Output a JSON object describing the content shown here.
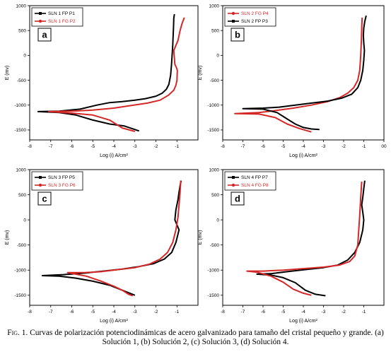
{
  "chart_data": [
    {
      "type": "line",
      "panel_label": "a",
      "xlabel": "Log (i) A/cm²",
      "ylabel": "E (mv)",
      "xlim": [
        -8,
        0
      ],
      "ylim": [
        -1700,
        1000
      ],
      "xticks": [
        -8,
        -7,
        -6,
        -5,
        -4,
        -3,
        -2,
        -1
      ],
      "yticks": [
        1000,
        500,
        0,
        -500,
        -1000,
        -1500
      ],
      "legend_position": "top-left",
      "series": [
        {
          "name": "SLN 1 FP P1",
          "color": "#000000",
          "marker": "square",
          "x": [
            -2.8,
            -3.5,
            -4.2,
            -5.0,
            -5.8,
            -6.6,
            -7.6,
            -6.6,
            -5.6,
            -4.8,
            -4.2,
            -3.6,
            -3.0,
            -2.5,
            -2.0,
            -1.7,
            -1.5,
            -1.38,
            -1.3,
            -1.26,
            -1.23,
            -1.2,
            -1.18,
            -1.16,
            -1.15,
            -1.12
          ],
          "y": [
            -1520,
            -1420,
            -1380,
            -1300,
            -1200,
            -1150,
            -1130,
            -1120,
            -1080,
            -1000,
            -950,
            -930,
            -900,
            -870,
            -820,
            -760,
            -680,
            -580,
            -400,
            -200,
            0,
            200,
            400,
            600,
            750,
            830
          ]
        },
        {
          "name": "SLN 1 FG P2",
          "color": "#d62728",
          "marker": "circle",
          "x": [
            -3.0,
            -3.6,
            -4.2,
            -5.0,
            -6.0,
            -7.1,
            -6.0,
            -5.0,
            -4.0,
            -3.2,
            -2.4,
            -1.8,
            -1.4,
            -1.15,
            -1.05,
            -1.0,
            -0.98,
            -1.02,
            -1.1,
            -1.15,
            -0.95,
            -0.85,
            -0.75,
            -0.65
          ],
          "y": [
            -1530,
            -1460,
            -1300,
            -1200,
            -1160,
            -1130,
            -1120,
            -1100,
            -1060,
            -1010,
            -960,
            -900,
            -800,
            -700,
            -600,
            -500,
            -300,
            -250,
            -180,
            100,
            300,
            500,
            650,
            760
          ]
        }
      ]
    },
    {
      "type": "line",
      "panel_label": "b",
      "xlabel": "Log (i) A/cm²",
      "ylabel": "E (mv)",
      "xlim": [
        -8,
        0
      ],
      "ylim": [
        -1700,
        1000
      ],
      "xticks": [
        -8,
        -7,
        -6,
        -5,
        -4,
        -3,
        -2,
        -1,
        0
      ],
      "xticklabels": [
        "-8",
        "-7",
        "-6",
        "-5",
        "-4",
        "-3",
        "-2",
        "-1",
        "00"
      ],
      "yticks": [
        1000,
        500,
        0,
        -500,
        -1000,
        -1500
      ],
      "legend_position": "top-left",
      "series": [
        {
          "name": "SLN 2 FG P4",
          "color": "#d62728",
          "marker": "circle",
          "x": [
            -3.6,
            -4.2,
            -4.8,
            -5.4,
            -6.2,
            -7.4,
            -6.2,
            -5.4,
            -4.5,
            -3.6,
            -2.8,
            -2.2,
            -1.8,
            -1.5,
            -1.3,
            -1.2,
            -1.15,
            -1.12,
            -1.1,
            -1.08
          ],
          "y": [
            -1540,
            -1470,
            -1380,
            -1250,
            -1180,
            -1170,
            -1150,
            -1110,
            -1060,
            -1000,
            -930,
            -850,
            -760,
            -650,
            -500,
            -300,
            0,
            300,
            550,
            760
          ]
        },
        {
          "name": "SLN 2 FP P3",
          "color": "#000000",
          "marker": "square",
          "x": [
            -3.2,
            -3.6,
            -4.0,
            -4.4,
            -4.8,
            -5.3,
            -6.0,
            -7.0,
            -6.0,
            -5.2,
            -4.4,
            -3.6,
            -2.8,
            -2.1,
            -1.6,
            -1.3,
            -1.15,
            -1.05,
            -1.0,
            -0.97,
            -1.0,
            -1.02,
            -1.0,
            -0.95,
            -0.88
          ],
          "y": [
            -1490,
            -1480,
            -1450,
            -1380,
            -1280,
            -1150,
            -1080,
            -1070,
            -1060,
            -1040,
            -1000,
            -960,
            -920,
            -860,
            -780,
            -650,
            -500,
            -300,
            -100,
            100,
            250,
            400,
            550,
            680,
            800
          ]
        }
      ]
    },
    {
      "type": "line",
      "panel_label": "c",
      "xlabel": "Log (i) A/cm²",
      "ylabel": "E (mv)",
      "xlim": [
        -8,
        0
      ],
      "ylim": [
        -1700,
        1000
      ],
      "xticks": [
        -8,
        -7,
        -6,
        -5,
        -4,
        -3,
        -2,
        -1
      ],
      "yticks": [
        1000,
        500,
        0,
        -500,
        -1000,
        -1500
      ],
      "legend_position": "top-left",
      "series": [
        {
          "name": "SLN 3 FP P5",
          "color": "#000000",
          "marker": "square",
          "x": [
            -3.0,
            -3.6,
            -4.2,
            -5.0,
            -5.8,
            -6.6,
            -7.4,
            -6.4,
            -5.4,
            -4.5,
            -3.6,
            -2.8,
            -2.1,
            -1.6,
            -1.25,
            -1.05,
            -0.9,
            -1.0,
            -1.1,
            -1.05,
            -0.95,
            -0.9,
            -0.85,
            -0.8
          ],
          "y": [
            -1500,
            -1400,
            -1300,
            -1220,
            -1160,
            -1120,
            -1110,
            -1090,
            -1060,
            -1020,
            -980,
            -930,
            -870,
            -780,
            -650,
            -450,
            -200,
            -100,
            0,
            200,
            400,
            550,
            680,
            780
          ]
        },
        {
          "name": "SLN 3 FG P6",
          "color": "#d62728",
          "marker": "circle",
          "x": [
            -3.1,
            -3.3,
            -3.6,
            -4.0,
            -4.6,
            -5.3,
            -6.2,
            -5.4,
            -4.6,
            -3.8,
            -3.0,
            -2.3,
            -1.8,
            -1.45,
            -1.2,
            -1.05,
            -0.95,
            -0.9,
            -0.85,
            -0.82
          ],
          "y": [
            -1510,
            -1480,
            -1400,
            -1320,
            -1220,
            -1120,
            -1050,
            -1050,
            -1030,
            -990,
            -950,
            -880,
            -780,
            -650,
            -450,
            -200,
            50,
            300,
            550,
            780
          ]
        }
      ]
    },
    {
      "type": "line",
      "panel_label": "d",
      "xlabel": "Log (i) A/cm²",
      "ylabel": "E (mv)",
      "xlim": [
        -8,
        0
      ],
      "ylim": [
        -1700,
        1000
      ],
      "xticks": [
        -8,
        -7,
        -6,
        -5,
        -4,
        -3,
        -2,
        -1
      ],
      "yticks": [
        1000,
        500,
        0,
        -500,
        -1000,
        -1500
      ],
      "legend_position": "top-left",
      "series": [
        {
          "name": "SLN 4 FP P7",
          "color": "#000000",
          "marker": "square",
          "x": [
            -2.9,
            -3.4,
            -3.9,
            -4.4,
            -5.0,
            -5.6,
            -6.3,
            -5.6,
            -4.8,
            -3.9,
            -3.0,
            -2.3,
            -1.8,
            -1.45,
            -1.2,
            -1.05,
            -1.0,
            -1.05,
            -1.1,
            -1.05,
            -1.0,
            -0.95
          ],
          "y": [
            -1510,
            -1480,
            -1400,
            -1250,
            -1150,
            -1100,
            -1080,
            -1070,
            -1030,
            -990,
            -950,
            -900,
            -800,
            -650,
            -450,
            -200,
            0,
            150,
            300,
            450,
            620,
            780
          ]
        },
        {
          "name": "SLN 4 FG P8",
          "color": "#d62728",
          "marker": "circle",
          "x": [
            -3.6,
            -4.0,
            -4.5,
            -5.0,
            -5.6,
            -6.3,
            -6.8,
            -6.0,
            -5.0,
            -4.0,
            -3.0,
            -2.2,
            -1.7,
            -1.45,
            -1.3,
            -1.25,
            -1.2,
            -1.15,
            -1.1
          ],
          "y": [
            -1500,
            -1460,
            -1380,
            -1240,
            -1120,
            -1040,
            -1020,
            -1020,
            -1000,
            -970,
            -940,
            -900,
            -830,
            -720,
            -500,
            -200,
            100,
            450,
            760
          ]
        }
      ]
    }
  ],
  "caption": {
    "fig_label": "Fig. 1.",
    "text": " Curvas de polarización potenciodinámicas de acero galvanizado para tamaño del cristal pequeño y grande. (a) Solución 1, (b) Solución 2, (c) Solución 3, (d) Solución 4."
  }
}
